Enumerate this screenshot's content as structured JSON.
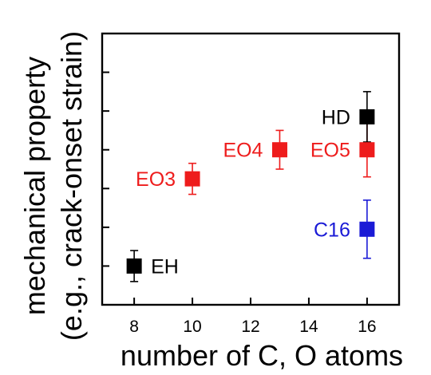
{
  "chart_data": {
    "type": "scatter",
    "title": "",
    "xlabel": "number of C, O atoms",
    "ylabel": "mechanical property",
    "ylabel_line2": "(e.g., crack-onset strain)",
    "xlim": [
      6.9,
      17.1
    ],
    "ylim": [
      0,
      7
    ],
    "xticks": [
      8,
      10,
      12,
      14,
      16
    ],
    "xtick_labels": [
      "8",
      "10",
      "12",
      "14",
      "16"
    ],
    "yticks": [
      1,
      2,
      3,
      4,
      5,
      6
    ],
    "ytick_labels": [],
    "grid": false,
    "legend": "none",
    "points": [
      {
        "label": "EH",
        "x": 8,
        "y": 1.0,
        "err": 0.4,
        "color": "#000000",
        "label_side": "right"
      },
      {
        "label": "EO3",
        "x": 10,
        "y": 3.25,
        "err": 0.4,
        "color": "#ee1c1c",
        "label_side": "left"
      },
      {
        "label": "EO4",
        "x": 13,
        "y": 4.0,
        "err": 0.5,
        "color": "#ee1c1c",
        "label_side": "left"
      },
      {
        "label": "EO5",
        "x": 16,
        "y": 4.0,
        "err": 0.7,
        "color": "#ee1c1c",
        "label_side": "left"
      },
      {
        "label": "HD",
        "x": 16,
        "y": 4.85,
        "err": 0.65,
        "color": "#000000",
        "label_side": "left"
      },
      {
        "label": "C16",
        "x": 16,
        "y": 1.95,
        "err": 0.75,
        "color": "#1a1ad6",
        "label_side": "left"
      }
    ]
  }
}
